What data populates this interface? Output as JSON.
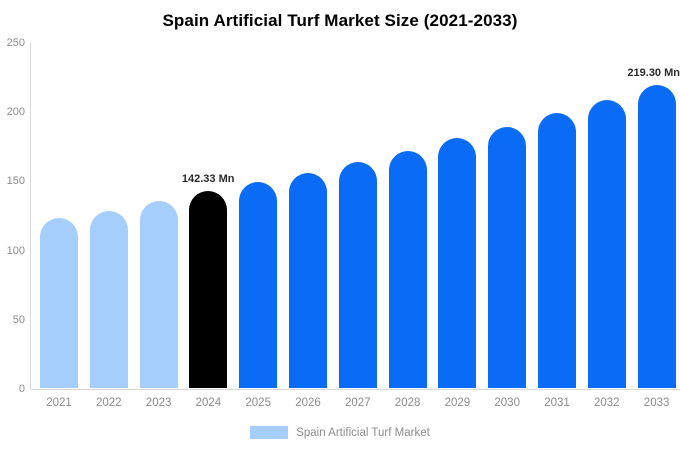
{
  "chart_data": {
    "type": "bar",
    "title": "Spain Artificial Turf Market Size (2021-2033)",
    "unit": "Mn",
    "categories": [
      "2021",
      "2022",
      "2023",
      "2024",
      "2025",
      "2026",
      "2027",
      "2028",
      "2029",
      "2030",
      "2031",
      "2032",
      "2033"
    ],
    "values": [
      122.5,
      128,
      135,
      142.33,
      149,
      155,
      163,
      171,
      180.5,
      188.5,
      198.5,
      208,
      219.3
    ],
    "bar_colors": [
      "#a6cefc",
      "#a6cefc",
      "#a6cefc",
      "#000000",
      "#0a6cf6",
      "#0a6cf6",
      "#0a6cf6",
      "#0a6cf6",
      "#0a6cf6",
      "#0a6cf6",
      "#0a6cf6",
      "#0a6cf6",
      "#0a6cf6"
    ],
    "annotations": [
      {
        "category": "2024",
        "text": "142.33 Mn"
      },
      {
        "category": "2033",
        "text": "219.30 Mn"
      }
    ],
    "xlabel": "",
    "ylabel": "",
    "ylim": [
      0,
      250
    ],
    "yticks": [
      0,
      50,
      100,
      150,
      200,
      250
    ],
    "grid": false,
    "legend": {
      "position": "bottom",
      "items": [
        {
          "label": "Spain Artificial Turf Market",
          "color": "#a6cefc"
        }
      ]
    }
  },
  "colors": {
    "background": "#ffffff",
    "axis_line": "#d9d9d9",
    "axis_text": "#8d8d8d",
    "annotation_text": "#2b2b2b",
    "past_bar": "#a6cefc",
    "current_bar": "#000000",
    "forecast_bar": "#0a6cf6"
  }
}
